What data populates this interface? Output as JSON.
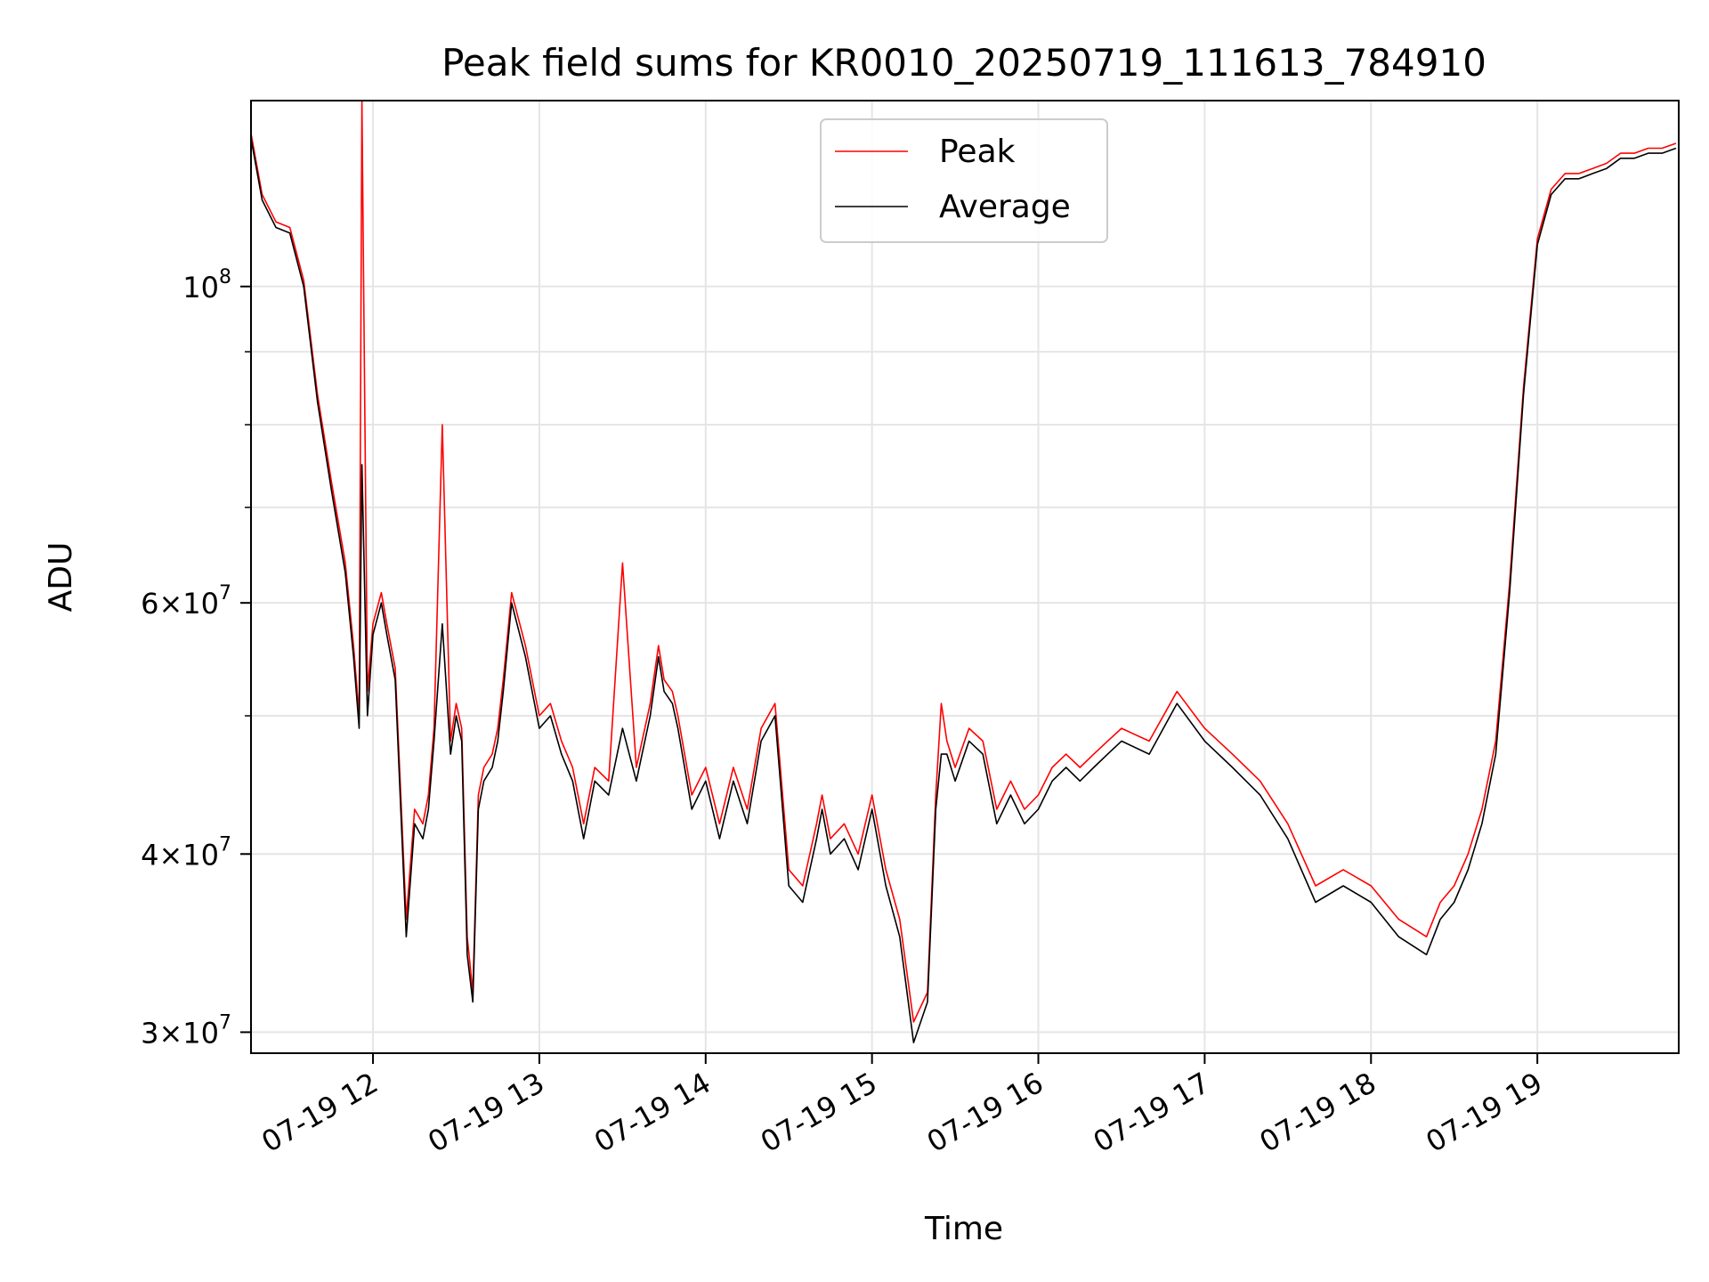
{
  "chart_data": {
    "type": "line",
    "title": "Peak field sums for KR0010_20250719_111613_784910",
    "xlabel": "Time",
    "ylabel": "ADU",
    "yscale": "log",
    "grid": true,
    "legend_position": "top-center",
    "xlim": [
      "2025-07-19 11:16",
      "2025-07-19 19:51"
    ],
    "ylim": [
      29000000,
      135000000
    ],
    "x_ticks": [
      "07-19 12",
      "07-19 13",
      "07-19 14",
      "07-19 15",
      "07-19 16",
      "07-19 17",
      "07-19 18",
      "07-19 19"
    ],
    "y_ticks": [
      {
        "value": 100000000,
        "mantissa": "",
        "base": "10",
        "exp": "8"
      },
      {
        "value": 60000000,
        "mantissa": "6×",
        "base": "10",
        "exp": "7"
      },
      {
        "value": 40000000,
        "mantissa": "4×",
        "base": "10",
        "exp": "7"
      },
      {
        "value": 30000000,
        "mantissa": "3×",
        "base": "10",
        "exp": "7"
      }
    ],
    "y_minor_ticks": [
      50000000,
      70000000,
      80000000,
      90000000
    ],
    "colors": {
      "Peak": "#ff0000",
      "Average": "#000000"
    },
    "x": [
      "11:16",
      "11:20",
      "11:25",
      "11:30",
      "11:35",
      "11:40",
      "11:45",
      "11:50",
      "11:53",
      "11:55",
      "11:56",
      "11:58",
      "12:00",
      "12:03",
      "12:05",
      "12:08",
      "12:12",
      "12:15",
      "12:18",
      "12:20",
      "12:22",
      "12:25",
      "12:28",
      "12:30",
      "12:32",
      "12:34",
      "12:36",
      "12:38",
      "12:40",
      "12:43",
      "12:45",
      "12:47",
      "12:50",
      "12:55",
      "13:00",
      "13:04",
      "13:08",
      "13:12",
      "13:16",
      "13:20",
      "13:25",
      "13:30",
      "13:35",
      "13:40",
      "13:43",
      "13:45",
      "13:48",
      "13:50",
      "13:55",
      "14:00",
      "14:05",
      "14:10",
      "14:15",
      "14:20",
      "14:25",
      "14:30",
      "14:35",
      "14:40",
      "14:42",
      "14:45",
      "14:50",
      "14:55",
      "15:00",
      "15:05",
      "15:10",
      "15:15",
      "15:20",
      "15:23",
      "15:25",
      "15:27",
      "15:30",
      "15:35",
      "15:40",
      "15:45",
      "15:50",
      "15:55",
      "16:00",
      "16:05",
      "16:10",
      "16:15",
      "16:20",
      "16:25",
      "16:30",
      "16:40",
      "16:50",
      "17:00",
      "17:10",
      "17:20",
      "17:30",
      "17:40",
      "17:50",
      "18:00",
      "18:10",
      "18:20",
      "18:25",
      "18:30",
      "18:35",
      "18:40",
      "18:45",
      "18:50",
      "18:55",
      "19:00",
      "19:05",
      "19:10",
      "19:15",
      "19:20",
      "19:25",
      "19:30",
      "19:35",
      "19:40",
      "19:45",
      "19:50"
    ],
    "series": [
      {
        "name": "Peak",
        "values": [
          128000000,
          116000000,
          111000000,
          110000000,
          101000000,
          84000000,
          73000000,
          64000000,
          56000000,
          50000000,
          135000000,
          52000000,
          58000000,
          61000000,
          58000000,
          54000000,
          36000000,
          43000000,
          42000000,
          44000000,
          49000000,
          80000000,
          48000000,
          51000000,
          49000000,
          35000000,
          32000000,
          44000000,
          46000000,
          47000000,
          49000000,
          53000000,
          61000000,
          56000000,
          50000000,
          51000000,
          48000000,
          46000000,
          42000000,
          46000000,
          45000000,
          64000000,
          46000000,
          51000000,
          56000000,
          53000000,
          52000000,
          50000000,
          44000000,
          46000000,
          42000000,
          46000000,
          43000000,
          49000000,
          51000000,
          39000000,
          38000000,
          42000000,
          44000000,
          41000000,
          42000000,
          40000000,
          44000000,
          39000000,
          36000000,
          30500000,
          32000000,
          44000000,
          51000000,
          48000000,
          46000000,
          49000000,
          48000000,
          43000000,
          45000000,
          43000000,
          44000000,
          46000000,
          47000000,
          46000000,
          47000000,
          48000000,
          49000000,
          48000000,
          52000000,
          49000000,
          47000000,
          45000000,
          42000000,
          38000000,
          39000000,
          38000000,
          36000000,
          35000000,
          37000000,
          38000000,
          40000000,
          43000000,
          48000000,
          62000000,
          85000000,
          108000000,
          117000000,
          120000000,
          120000000,
          121000000,
          122000000,
          124000000,
          124000000,
          125000000,
          125000000,
          126000000
        ]
      },
      {
        "name": "Average",
        "values": [
          127000000,
          115000000,
          110000000,
          109000000,
          100000000,
          83000000,
          72000000,
          63000000,
          55000000,
          49000000,
          75000000,
          50000000,
          57000000,
          60000000,
          57000000,
          53000000,
          35000000,
          42000000,
          41000000,
          43000000,
          48000000,
          58000000,
          47000000,
          50000000,
          48000000,
          34000000,
          31500000,
          43000000,
          45000000,
          46000000,
          48000000,
          52000000,
          60000000,
          55000000,
          49000000,
          50000000,
          47000000,
          45000000,
          41000000,
          45000000,
          44000000,
          49000000,
          45000000,
          50000000,
          55000000,
          52000000,
          51000000,
          49000000,
          43000000,
          45000000,
          41000000,
          45000000,
          42000000,
          48000000,
          50000000,
          38000000,
          37000000,
          41000000,
          43000000,
          40000000,
          41000000,
          39000000,
          43000000,
          38000000,
          35000000,
          29500000,
          31500000,
          43000000,
          47000000,
          47000000,
          45000000,
          48000000,
          47000000,
          42000000,
          44000000,
          42000000,
          43000000,
          45000000,
          46000000,
          45000000,
          46000000,
          47000000,
          48000000,
          47000000,
          51000000,
          48000000,
          46000000,
          44000000,
          41000000,
          37000000,
          38000000,
          37000000,
          35000000,
          34000000,
          36000000,
          37000000,
          39000000,
          42000000,
          47000000,
          61000000,
          84000000,
          107000000,
          116000000,
          119000000,
          119000000,
          120000000,
          121000000,
          123000000,
          123000000,
          124000000,
          124000000,
          125000000
        ]
      }
    ]
  }
}
